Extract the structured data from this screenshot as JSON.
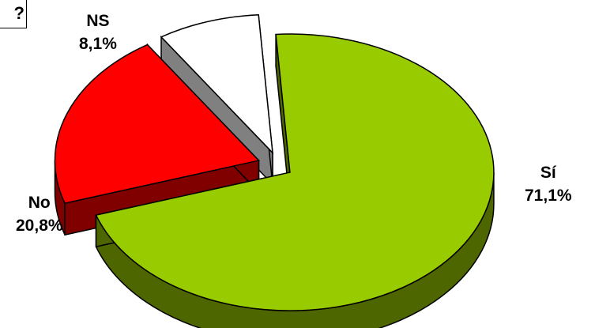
{
  "corner_mark": "?",
  "chart_data": {
    "type": "pie",
    "title": "",
    "slices": [
      {
        "label": "Sí",
        "value": 71.1,
        "value_label": "71,1%",
        "color": "#99CC00",
        "side": "#4D6600"
      },
      {
        "label": "No",
        "value": 20.8,
        "value_label": "20,8%",
        "color": "#FF0000",
        "side": "#800000"
      },
      {
        "label": "NS",
        "value": 8.1,
        "value_label": "8,1%",
        "color": "#FFFFFF",
        "side": "#808080"
      }
    ],
    "style": "3d-exploded"
  }
}
